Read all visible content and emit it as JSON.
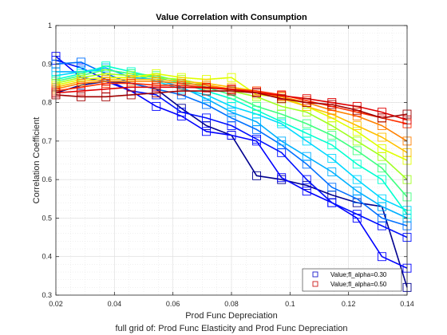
{
  "chart_data": {
    "type": "line",
    "title": "Value Correlation with Consumption",
    "xlabel": "Prod Func Depreciation",
    "ylabel": "Correlation Coefficient",
    "caption": "full grid of: Prod Func Elasticity and Prod Func Depreciation",
    "xlim": [
      0.02,
      0.14
    ],
    "ylim": [
      0.3,
      1.0
    ],
    "xticks": [
      0.02,
      0.04,
      0.06,
      0.08,
      0.1,
      0.12,
      0.14
    ],
    "xtick_labels": [
      "0.02",
      "0.04",
      "0.06",
      "0.08",
      "0.1",
      "0.12",
      "0.14"
    ],
    "yticks": [
      0.3,
      0.4,
      0.5,
      0.6,
      0.7,
      0.8,
      0.9,
      1.0
    ],
    "ytick_labels": [
      "0.3",
      "0.4",
      "0.5",
      "0.6",
      "0.7",
      "0.8",
      "0.9",
      "1"
    ],
    "grid": true,
    "legend_position": "bottom-right",
    "legend": [
      {
        "label": "Value;fl_alpha=0.30",
        "color": "#1a1acc"
      },
      {
        "label": "Value;fl_alpha=0.50",
        "color": "#cc1a1a"
      }
    ],
    "x": [
      0.02,
      0.0286,
      0.0371,
      0.0457,
      0.0543,
      0.0629,
      0.0714,
      0.08,
      0.0886,
      0.0971,
      0.1057,
      0.1143,
      0.1229,
      0.1314,
      0.14
    ],
    "series": [
      {
        "color": "#00008f",
        "values": [
          0.825,
          0.845,
          0.855,
          0.85,
          0.835,
          0.785,
          0.74,
          0.715,
          0.61,
          0.6,
          0.585,
          0.56,
          0.54,
          0.53,
          0.32
        ]
      },
      {
        "color": "#0000ff",
        "values": [
          0.92,
          0.865,
          0.855,
          0.83,
          0.79,
          0.765,
          0.725,
          0.715,
          0.7,
          0.605,
          0.57,
          0.54,
          0.5,
          0.4,
          0.37
        ]
      },
      {
        "color": "#0010ff",
        "values": [
          0.91,
          0.89,
          0.86,
          0.83,
          0.82,
          0.775,
          0.76,
          0.74,
          0.705,
          0.67,
          0.6,
          0.54,
          0.51,
          0.48,
          0.45
        ]
      },
      {
        "color": "#0070ff",
        "values": [
          0.9,
          0.905,
          0.875,
          0.85,
          0.835,
          0.82,
          0.795,
          0.76,
          0.73,
          0.69,
          0.64,
          0.58,
          0.55,
          0.5,
          0.48
        ]
      },
      {
        "color": "#00b0ff",
        "values": [
          0.88,
          0.88,
          0.89,
          0.865,
          0.86,
          0.84,
          0.81,
          0.775,
          0.75,
          0.7,
          0.66,
          0.62,
          0.57,
          0.53,
          0.5
        ]
      },
      {
        "color": "#00d8ff",
        "values": [
          0.87,
          0.88,
          0.885,
          0.875,
          0.855,
          0.835,
          0.82,
          0.79,
          0.77,
          0.745,
          0.7,
          0.655,
          0.6,
          0.55,
          0.52
        ]
      },
      {
        "color": "#00ffd0",
        "values": [
          0.86,
          0.875,
          0.895,
          0.88,
          0.865,
          0.85,
          0.83,
          0.81,
          0.78,
          0.75,
          0.72,
          0.69,
          0.64,
          0.6,
          0.51
        ]
      },
      {
        "color": "#40ff80",
        "values": [
          0.855,
          0.87,
          0.885,
          0.875,
          0.87,
          0.855,
          0.84,
          0.82,
          0.79,
          0.77,
          0.745,
          0.715,
          0.675,
          0.63,
          0.555
        ]
      },
      {
        "color": "#a0ff20",
        "values": [
          0.85,
          0.865,
          0.875,
          0.87,
          0.865,
          0.86,
          0.845,
          0.83,
          0.815,
          0.79,
          0.775,
          0.74,
          0.7,
          0.66,
          0.6
        ]
      },
      {
        "color": "#e0ff00",
        "values": [
          0.845,
          0.86,
          0.865,
          0.865,
          0.875,
          0.865,
          0.86,
          0.865,
          0.82,
          0.815,
          0.79,
          0.76,
          0.725,
          0.68,
          0.65
        ]
      },
      {
        "color": "#ffc000",
        "values": [
          0.84,
          0.855,
          0.86,
          0.86,
          0.86,
          0.855,
          0.85,
          0.84,
          0.83,
          0.81,
          0.79,
          0.77,
          0.74,
          0.71,
          0.67
        ]
      },
      {
        "color": "#ff8000",
        "values": [
          0.835,
          0.85,
          0.855,
          0.855,
          0.855,
          0.85,
          0.845,
          0.835,
          0.825,
          0.815,
          0.8,
          0.78,
          0.765,
          0.74,
          0.7
        ]
      },
      {
        "color": "#ff3000",
        "values": [
          0.83,
          0.84,
          0.85,
          0.85,
          0.845,
          0.845,
          0.84,
          0.835,
          0.83,
          0.82,
          0.805,
          0.79,
          0.775,
          0.76,
          0.745
        ]
      },
      {
        "color": "#e00000",
        "values": [
          0.825,
          0.83,
          0.835,
          0.84,
          0.84,
          0.84,
          0.838,
          0.834,
          0.826,
          0.818,
          0.81,
          0.8,
          0.79,
          0.775,
          0.755
        ]
      },
      {
        "color": "#a00000",
        "values": [
          0.82,
          0.815,
          0.815,
          0.82,
          0.825,
          0.83,
          0.83,
          0.83,
          0.825,
          0.81,
          0.8,
          0.795,
          0.78,
          0.76,
          0.77
        ]
      }
    ]
  }
}
